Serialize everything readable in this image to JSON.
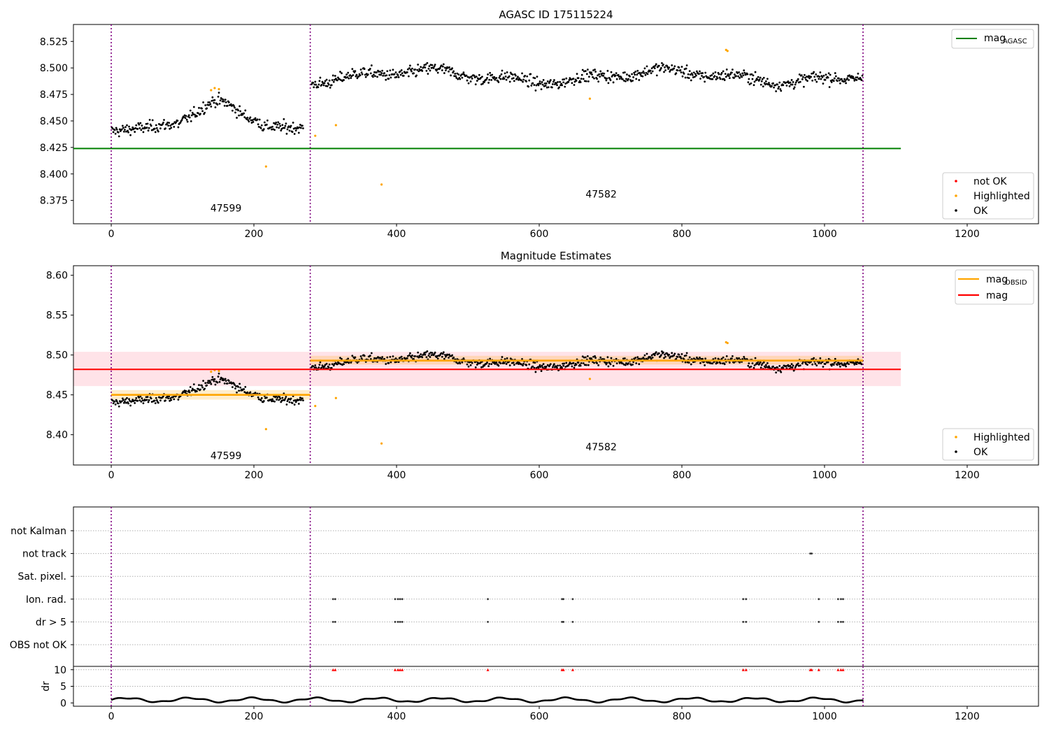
{
  "chart_data": [
    {
      "type": "scatter",
      "title": "AGASC ID 175115224",
      "xlim": [
        -53,
        1300
      ],
      "ylim": [
        8.353,
        8.541
      ],
      "xticks": [
        0,
        200,
        400,
        600,
        800,
        1000,
        1200
      ],
      "yticks": [
        8.375,
        8.4,
        8.425,
        8.45,
        8.475,
        8.5,
        8.525
      ],
      "obsid_boundaries": [
        0,
        279,
        1054
      ],
      "obsid_labels": [
        {
          "text": "47599",
          "x": 139,
          "y": 8.368
        },
        {
          "text": "47582",
          "x": 665,
          "y": 8.381
        }
      ],
      "mag_agasc": {
        "value": 8.424,
        "x_range": [
          -53,
          1107
        ]
      },
      "legend_top": [
        {
          "label": "mag",
          "subscript": "AGASC",
          "color": "#008000"
        }
      ],
      "legend_bottom": [
        {
          "label": "not OK",
          "color": "#ff0000"
        },
        {
          "label": "Highlighted",
          "color": "#ffa500"
        },
        {
          "label": "OK",
          "color": "#000000"
        }
      ],
      "highlighted_points": [
        {
          "x": 217,
          "y": 8.407
        },
        {
          "x": 286,
          "y": 8.436
        },
        {
          "x": 315,
          "y": 8.446
        },
        {
          "x": 379,
          "y": 8.39
        },
        {
          "x": 671,
          "y": 8.471
        },
        {
          "x": 862,
          "y": 8.517
        },
        {
          "x": 864,
          "y": 8.516
        },
        {
          "x": 140,
          "y": 8.479
        },
        {
          "x": 145,
          "y": 8.481
        },
        {
          "x": 151,
          "y": 8.48
        }
      ]
    },
    {
      "type": "scatter",
      "title": "Magnitude Estimates",
      "xlim": [
        -53,
        1300
      ],
      "ylim": [
        8.362,
        8.612
      ],
      "xticks": [
        0,
        200,
        400,
        600,
        800,
        1000,
        1200
      ],
      "yticks": [
        8.4,
        8.45,
        8.5,
        8.55,
        8.6
      ],
      "obsid_boundaries": [
        0,
        279,
        1054
      ],
      "obsid_labels": [
        {
          "text": "47599",
          "x": 139,
          "y": 8.374
        },
        {
          "text": "47582",
          "x": 665,
          "y": 8.385
        }
      ],
      "mag": {
        "value": 8.482,
        "band": [
          8.461,
          8.504
        ],
        "x_range": [
          -53,
          1107
        ]
      },
      "mag_obsid": [
        {
          "value": 8.45,
          "band": [
            8.444,
            8.456
          ],
          "x_range": [
            0,
            279
          ]
        },
        {
          "value": 8.493,
          "band": [
            8.488,
            8.499
          ],
          "x_range": [
            279,
            1054
          ]
        }
      ],
      "legend_top": [
        {
          "label": "mag",
          "subscript": "OBSID",
          "color": "#ffa500"
        },
        {
          "label": "mag",
          "subscript": "",
          "color": "#ff0000"
        }
      ],
      "legend_bottom": [
        {
          "label": "Highlighted",
          "color": "#ffa500"
        },
        {
          "label": "OK",
          "color": "#000000"
        }
      ],
      "highlighted_points": [
        {
          "x": 217,
          "y": 8.407
        },
        {
          "x": 286,
          "y": 8.436
        },
        {
          "x": 315,
          "y": 8.446
        },
        {
          "x": 379,
          "y": 8.389
        },
        {
          "x": 671,
          "y": 8.47
        },
        {
          "x": 862,
          "y": 8.516
        },
        {
          "x": 864,
          "y": 8.515
        },
        {
          "x": 140,
          "y": 8.479
        },
        {
          "x": 145,
          "y": 8.481
        },
        {
          "x": 151,
          "y": 8.48
        }
      ]
    },
    {
      "type": "scatter",
      "title": "",
      "xlim": [
        -53,
        1300
      ],
      "flag_categories": [
        "not Kalman",
        "not track",
        "Sat. pixel.",
        "Ion. rad.",
        "dr > 5",
        "OBS not OK"
      ],
      "obsid_boundaries": [
        0,
        279,
        1054
      ],
      "flag_events": {
        "not track": [
          980,
          982
        ],
        "Ion. rad.": [
          311,
          314,
          398,
          402,
          405,
          408,
          528,
          632,
          634,
          647,
          886,
          890,
          992,
          1019,
          1023,
          1026
        ],
        "dr > 5": [
          311,
          314,
          398,
          402,
          405,
          408,
          528,
          632,
          634,
          647,
          886,
          890,
          992,
          1019,
          1023,
          1026
        ]
      }
    },
    {
      "type": "scatter",
      "title": "",
      "xlim": [
        -53,
        1300
      ],
      "ylim": [
        -1,
        11
      ],
      "ylabel": "dr",
      "yticks": [
        0,
        5,
        10
      ],
      "clip_value": 10,
      "obsid_boundaries": [
        0,
        279,
        1054
      ],
      "clipped_points": [
        311,
        314,
        398,
        402,
        405,
        408,
        528,
        632,
        634,
        647,
        886,
        890,
        980,
        982,
        992,
        1019,
        1023,
        1026
      ]
    }
  ]
}
